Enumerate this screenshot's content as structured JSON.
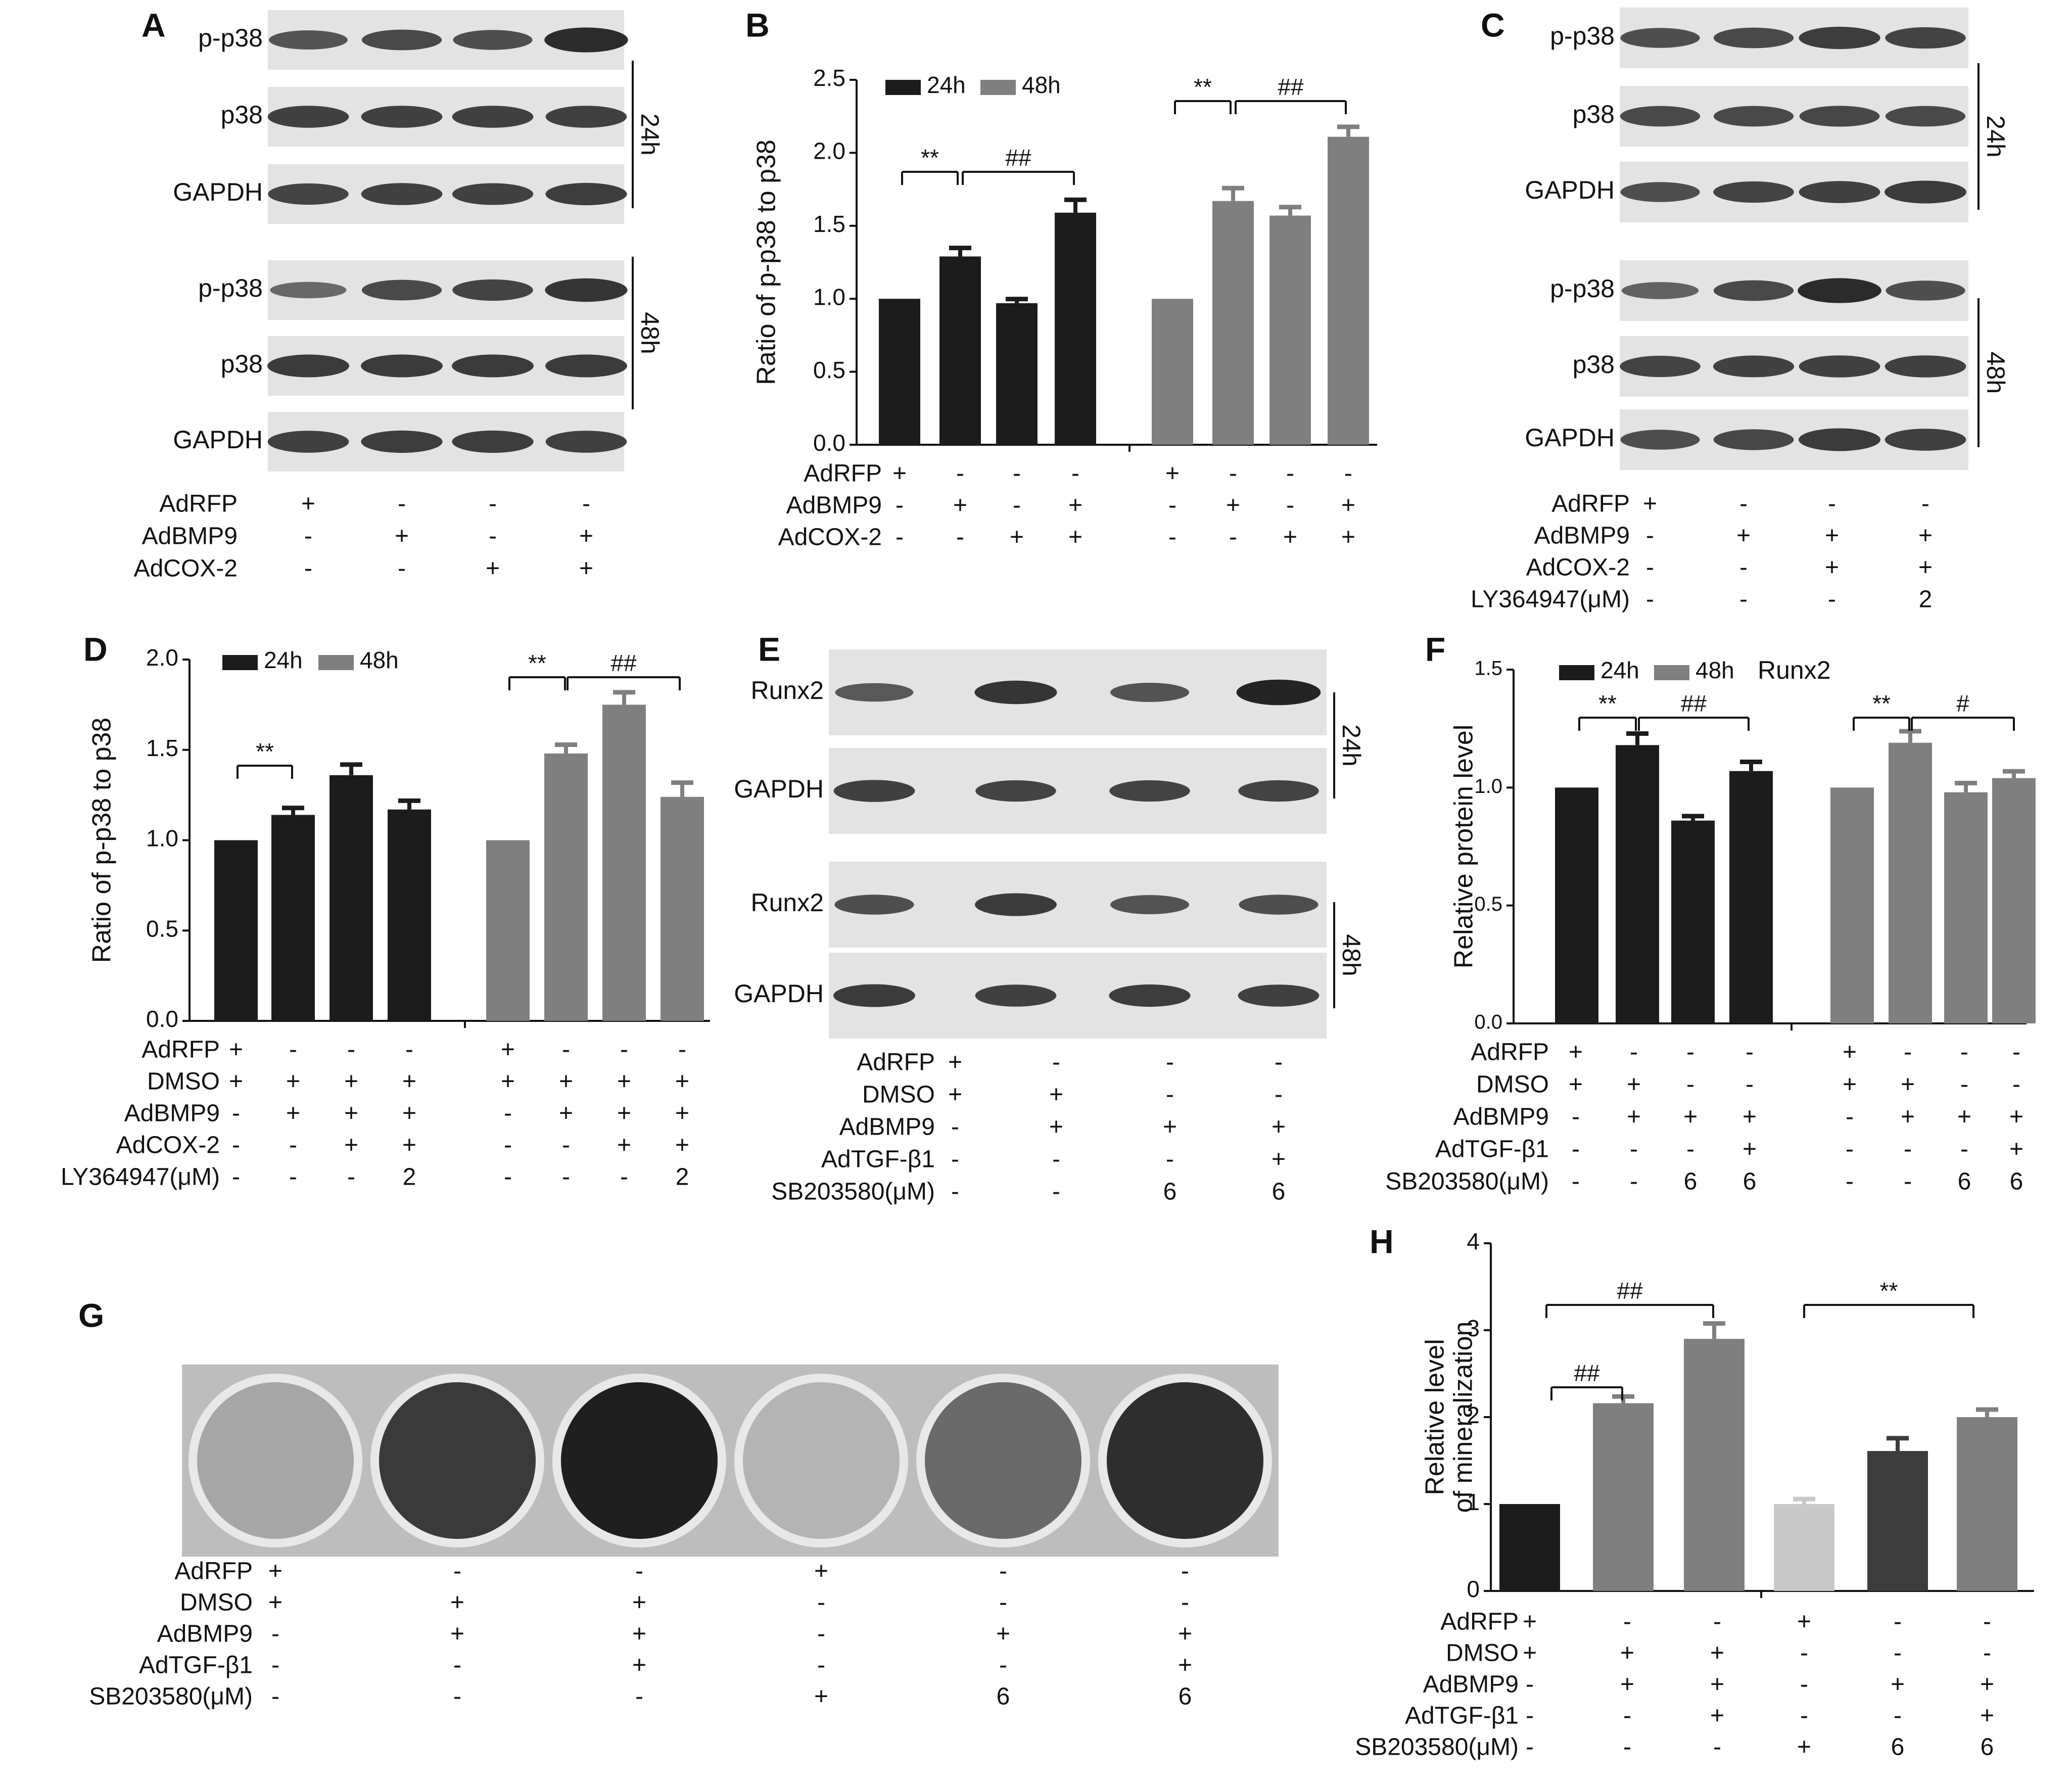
{
  "figure": {
    "colors": {
      "black_bar": "#1c1c1c",
      "gray_bar": "#7f7f7f",
      "light_bar": "#c8c8c8",
      "dark_gray_bar": "#3c3c3c",
      "blot_bg": "#e3e3e3",
      "band": "#161616"
    },
    "panels": {
      "A": {
        "letter": "A",
        "rows": [
          "p-p38",
          "p38",
          "GAPDH",
          "p-p38",
          "p38",
          "GAPDH"
        ],
        "time_labels": [
          "24h",
          "48h"
        ],
        "conditions": [
          {
            "label": "AdRFP",
            "values": [
              "+",
              "-",
              "-",
              "-"
            ]
          },
          {
            "label": "AdBMP9",
            "values": [
              "-",
              "+",
              "-",
              "+"
            ]
          },
          {
            "label": "AdCOX-2",
            "values": [
              "-",
              "-",
              "+",
              "+"
            ]
          }
        ]
      },
      "B": {
        "letter": "B",
        "conditions": [
          {
            "label": "AdRFP",
            "values": [
              "+",
              "-",
              "-",
              "-",
              "+",
              "-",
              "-",
              "-"
            ]
          },
          {
            "label": "AdBMP9",
            "values": [
              "-",
              "+",
              "-",
              "+",
              "-",
              "+",
              "-",
              "+"
            ]
          },
          {
            "label": "AdCOX-2",
            "values": [
              "-",
              "-",
              "+",
              "+",
              "-",
              "-",
              "+",
              "+"
            ]
          }
        ],
        "significance": [
          "**",
          "##",
          "**",
          "##"
        ]
      },
      "C": {
        "letter": "C",
        "rows": [
          "p-p38",
          "p38",
          "GAPDH",
          "p-p38",
          "p38",
          "GAPDH"
        ],
        "time_labels": [
          "24h",
          "48h"
        ],
        "conditions": [
          {
            "label": "AdRFP",
            "values": [
              "+",
              "-",
              "-",
              "-"
            ]
          },
          {
            "label": "AdBMP9",
            "values": [
              "-",
              "+",
              "+",
              "+"
            ]
          },
          {
            "label": "AdCOX-2",
            "values": [
              "-",
              "-",
              "+",
              "+"
            ]
          },
          {
            "label": "LY364947(μM)",
            "values": [
              "-",
              "-",
              "-",
              "2"
            ]
          }
        ]
      },
      "D": {
        "letter": "D",
        "conditions": [
          {
            "label": "AdRFP",
            "values": [
              "+",
              "-",
              "-",
              "-",
              "+",
              "-",
              "-",
              "-"
            ]
          },
          {
            "label": "DMSO",
            "values": [
              "+",
              "+",
              "+",
              "+",
              "+",
              "+",
              "+",
              "+"
            ]
          },
          {
            "label": "AdBMP9",
            "values": [
              "-",
              "+",
              "+",
              "+",
              "-",
              "+",
              "+",
              "+"
            ]
          },
          {
            "label": "AdCOX-2",
            "values": [
              "-",
              "-",
              "+",
              "+",
              "-",
              "-",
              "+",
              "+"
            ]
          },
          {
            "label": "LY364947(μM)",
            "values": [
              "-",
              "-",
              "-",
              "2",
              "-",
              "-",
              "-",
              "2"
            ]
          }
        ],
        "significance": [
          "**",
          "**",
          "##"
        ]
      },
      "E": {
        "letter": "E",
        "rows": [
          "Runx2",
          "GAPDH",
          "Runx2",
          "GAPDH"
        ],
        "time_labels": [
          "24h",
          "48h"
        ],
        "conditions": [
          {
            "label": "AdRFP",
            "values": [
              "+",
              "-",
              "-",
              "-"
            ]
          },
          {
            "label": "DMSO",
            "values": [
              "+",
              "+",
              "-",
              "-"
            ]
          },
          {
            "label": "AdBMP9",
            "values": [
              "-",
              "+",
              "+",
              "+"
            ]
          },
          {
            "label": "AdTGF-β1",
            "values": [
              "-",
              "-",
              "-",
              "+"
            ]
          },
          {
            "label": "SB203580(μM)",
            "values": [
              "-",
              "-",
              "6",
              "6"
            ]
          }
        ]
      },
      "F": {
        "letter": "F",
        "conditions": [
          {
            "label": "AdRFP",
            "values": [
              "+",
              "-",
              "-",
              "-",
              "+",
              "-",
              "-",
              "-"
            ]
          },
          {
            "label": "DMSO",
            "values": [
              "+",
              "+",
              "-",
              "-",
              "+",
              "+",
              "-",
              "-"
            ]
          },
          {
            "label": "AdBMP9",
            "values": [
              "-",
              "+",
              "+",
              "+",
              "-",
              "+",
              "+",
              "+"
            ]
          },
          {
            "label": "AdTGF-β1",
            "values": [
              "-",
              "-",
              "-",
              "+",
              "-",
              "-",
              "-",
              "+"
            ]
          },
          {
            "label": "SB203580(μM)",
            "values": [
              "-",
              "-",
              "6",
              "6",
              "-",
              "-",
              "6",
              "6"
            ]
          }
        ],
        "significance": [
          "**",
          "##",
          "**",
          "#"
        ]
      },
      "G": {
        "letter": "G",
        "conditions": [
          {
            "label": "AdRFP",
            "values": [
              "+",
              "-",
              "-",
              "+",
              "-",
              "-"
            ]
          },
          {
            "label": "DMSO",
            "values": [
              "+",
              "+",
              "+",
              "-",
              "-",
              "-"
            ]
          },
          {
            "label": "AdBMP9",
            "values": [
              "-",
              "+",
              "+",
              "-",
              "+",
              "+"
            ]
          },
          {
            "label": "AdTGF-β1",
            "values": [
              "-",
              "-",
              "+",
              "-",
              "-",
              "+"
            ]
          },
          {
            "label": "SB203580(μM)",
            "values": [
              "-",
              "-",
              "-",
              "+",
              "6",
              "6"
            ]
          }
        ]
      },
      "H": {
        "letter": "H",
        "conditions": [
          {
            "label": "AdRFP",
            "values": [
              "+",
              "-",
              "-",
              "+",
              "-",
              "-"
            ]
          },
          {
            "label": "DMSO",
            "values": [
              "+",
              "+",
              "+",
              "-",
              "-",
              "-"
            ]
          },
          {
            "label": "AdBMP9",
            "values": [
              "-",
              "+",
              "+",
              "-",
              "+",
              "+"
            ]
          },
          {
            "label": "AdTGF-β1",
            "values": [
              "-",
              "-",
              "+",
              "-",
              "-",
              "+"
            ]
          },
          {
            "label": "SB203580(μM)",
            "values": [
              "-",
              "-",
              "-",
              "+",
              "6",
              "6"
            ]
          }
        ],
        "significance": [
          "##",
          "**",
          "##"
        ]
      }
    }
  },
  "chart_data": [
    {
      "panel": "B",
      "type": "bar",
      "ylabel": "Ratio of p-p38 to p38",
      "ylim": [
        0,
        2.5
      ],
      "yticks": [
        "0.0",
        "0.5",
        "1.0",
        "1.5",
        "2.0",
        "2.5"
      ],
      "legend": [
        "24h",
        "48h"
      ],
      "legend_position": "top-left",
      "series": [
        {
          "name": "24h",
          "values": [
            1.0,
            1.29,
            0.97,
            1.59
          ],
          "errors": [
            0,
            0.06,
            0.03,
            0.09
          ]
        },
        {
          "name": "48h",
          "values": [
            1.0,
            1.67,
            1.57,
            2.11
          ],
          "errors": [
            0,
            0.09,
            0.06,
            0.07
          ]
        }
      ]
    },
    {
      "panel": "D",
      "type": "bar",
      "ylabel": "Ratio of p-p38 to p38",
      "ylim": [
        0,
        2.0
      ],
      "yticks": [
        "0.0",
        "0.5",
        "1.0",
        "1.5",
        "2.0"
      ],
      "legend": [
        "24h",
        "48h"
      ],
      "legend_position": "top-left",
      "series": [
        {
          "name": "24h",
          "values": [
            1.0,
            1.14,
            1.36,
            1.17
          ],
          "errors": [
            0,
            0.04,
            0.06,
            0.05
          ]
        },
        {
          "name": "48h",
          "values": [
            1.0,
            1.48,
            1.75,
            1.24
          ],
          "errors": [
            0,
            0.05,
            0.07,
            0.08
          ]
        }
      ]
    },
    {
      "panel": "F",
      "type": "bar",
      "title": "Runx2",
      "ylabel": "Relative protein level",
      "ylim": [
        0,
        1.5
      ],
      "yticks": [
        "0.0",
        "0.5",
        "1.0",
        "1.5"
      ],
      "legend": [
        "24h",
        "48h"
      ],
      "legend_position": "top-left",
      "series": [
        {
          "name": "24h",
          "values": [
            1.0,
            1.18,
            0.86,
            1.07
          ],
          "errors": [
            0,
            0.05,
            0.02,
            0.04
          ]
        },
        {
          "name": "48h",
          "values": [
            1.0,
            1.19,
            0.98,
            1.04
          ],
          "errors": [
            0,
            0.05,
            0.04,
            0.03
          ]
        }
      ]
    },
    {
      "panel": "H",
      "type": "bar",
      "ylabel": "Relative  level\nof mineralization",
      "ylim": [
        0,
        4
      ],
      "yticks": [
        "0",
        "1",
        "2",
        "3",
        "4"
      ],
      "values": [
        1.0,
        2.16,
        2.9,
        1.0,
        1.61,
        2.0
      ],
      "errors": [
        0,
        0.08,
        0.18,
        0.06,
        0.15,
        0.09
      ]
    }
  ]
}
